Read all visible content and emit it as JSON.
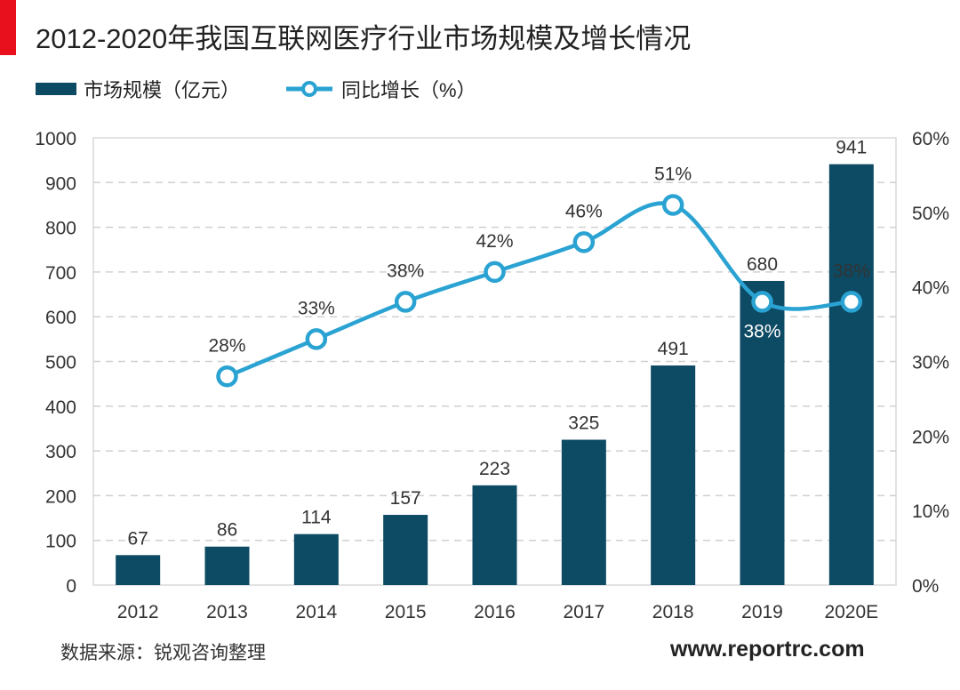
{
  "title": "2012-2020年我国互联网医疗行业市场规模及增长情况",
  "legend": {
    "bar_label": "市场规模（亿元）",
    "line_label": "同比增长（%）"
  },
  "source": "数据来源：锐观咨询整理",
  "website": "www.reportrc.com",
  "colors": {
    "bar": "#0d4a63",
    "line": "#2aa3d3",
    "accent": "#e8101c"
  },
  "chart_data": {
    "type": "bar+line",
    "categories": [
      "2012",
      "2013",
      "2014",
      "2015",
      "2016",
      "2017",
      "2018",
      "2019",
      "2020E"
    ],
    "series": [
      {
        "name": "市场规模（亿元）",
        "type": "bar",
        "axis": "left",
        "values": [
          67,
          86,
          114,
          157,
          223,
          325,
          491,
          680,
          941
        ],
        "labels": [
          "67",
          "86",
          "114",
          "157",
          "223",
          "325",
          "491",
          "680",
          "941"
        ]
      },
      {
        "name": "同比增长（%）",
        "type": "line",
        "axis": "right",
        "values": [
          null,
          28,
          33,
          38,
          42,
          46,
          51,
          38,
          38
        ],
        "labels": [
          "",
          "28%",
          "33%",
          "38%",
          "42%",
          "46%",
          "51%",
          "38%",
          "38%"
        ]
      }
    ],
    "y_left": {
      "range": [
        0,
        1000
      ],
      "ticks": [
        "0",
        "100",
        "200",
        "300",
        "400",
        "500",
        "600",
        "700",
        "800",
        "900",
        "1000"
      ]
    },
    "y_right": {
      "range": [
        0,
        60
      ],
      "ticks": [
        "0%",
        "10%",
        "20%",
        "30%",
        "40%",
        "50%",
        "60%"
      ]
    },
    "grid": "horizontal dashed",
    "legend_position": "top-left"
  }
}
